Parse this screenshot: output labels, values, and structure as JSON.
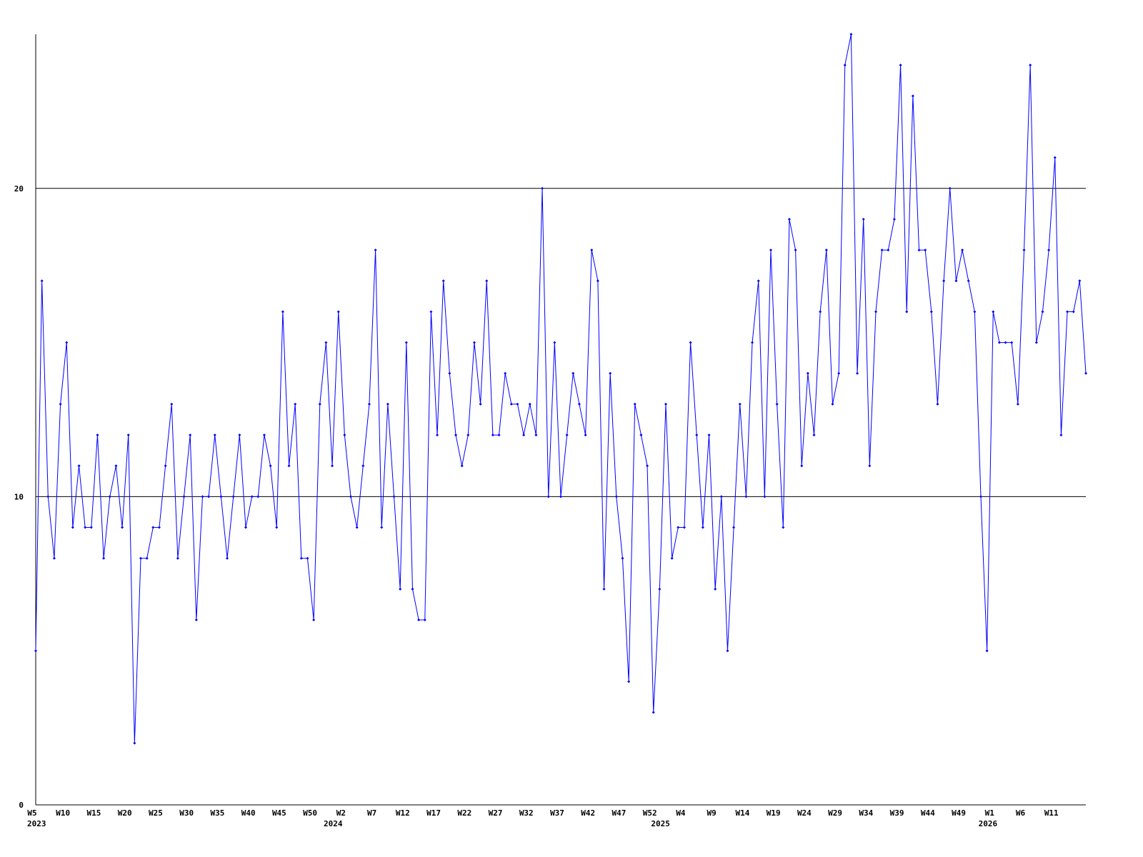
{
  "chart_data": {
    "type": "line",
    "categories": [
      "W5",
      null,
      null,
      null,
      null,
      "W10",
      null,
      null,
      null,
      null,
      "W15",
      null,
      null,
      null,
      null,
      "W20",
      null,
      null,
      null,
      null,
      "W25",
      null,
      null,
      null,
      null,
      "W30",
      null,
      null,
      null,
      null,
      "W35",
      null,
      null,
      null,
      null,
      "W40",
      null,
      null,
      null,
      null,
      "W45",
      null,
      null,
      null,
      null,
      "W50",
      null,
      null,
      null,
      null,
      "W2",
      null,
      null,
      null,
      null,
      "W7",
      null,
      null,
      null,
      null,
      "W12",
      null,
      null,
      null,
      null,
      "W17",
      null,
      null,
      null,
      null,
      "W22",
      null,
      null,
      null,
      null,
      "W27",
      null,
      null,
      null,
      null,
      "W32",
      null,
      null,
      null,
      null,
      "W37",
      null,
      null,
      null,
      null,
      "W42",
      null,
      null,
      null,
      null,
      "W47",
      null,
      null,
      null,
      null,
      "W52",
      null,
      null,
      null,
      null,
      "W4",
      null,
      null,
      null,
      null,
      "W9",
      null,
      null,
      null,
      null,
      "W14",
      null,
      null,
      null,
      null,
      "W19",
      null,
      null,
      null,
      null,
      "W24",
      null,
      null,
      null,
      null,
      "W29",
      null,
      null,
      null,
      null,
      "W34",
      null,
      null,
      null,
      null,
      "W39",
      null,
      null,
      null,
      null,
      "W44",
      null,
      null,
      null,
      null,
      "W49",
      null,
      null,
      null,
      null,
      "W1",
      null,
      null,
      null,
      null,
      "W6",
      null,
      null,
      null,
      null,
      "W11",
      null,
      null,
      null,
      null,
      null
    ],
    "x_year_labels": [
      "2023",
      null,
      null,
      null,
      null,
      null,
      null,
      null,
      null,
      null,
      null,
      null,
      null,
      null,
      null,
      null,
      null,
      null,
      null,
      null,
      null,
      null,
      null,
      null,
      null,
      null,
      null,
      null,
      null,
      null,
      null,
      null,
      null,
      null,
      null,
      null,
      null,
      null,
      null,
      null,
      null,
      null,
      null,
      null,
      null,
      null,
      null,
      null,
      "2024",
      null,
      null,
      null,
      null,
      null,
      null,
      null,
      null,
      null,
      null,
      null,
      null,
      null,
      null,
      null,
      null,
      null,
      null,
      null,
      null,
      null,
      null,
      null,
      null,
      null,
      null,
      null,
      null,
      null,
      null,
      null,
      null,
      null,
      null,
      null,
      null,
      null,
      null,
      null,
      null,
      null,
      null,
      null,
      null,
      null,
      null,
      null,
      null,
      null,
      null,
      null,
      null,
      "2025",
      null,
      null,
      null,
      null,
      null,
      null,
      null,
      null,
      null,
      null,
      null,
      null,
      null,
      null,
      null,
      null,
      null,
      null,
      null,
      null,
      null,
      null,
      null,
      null,
      null,
      null,
      null,
      null,
      null,
      null,
      null,
      null,
      null,
      null,
      null,
      null,
      null,
      null,
      null,
      null,
      null,
      null,
      null,
      null,
      null,
      null,
      null,
      null,
      null,
      null,
      null,
      null,
      "2026",
      null,
      null,
      null,
      null,
      null,
      null,
      null,
      null,
      null,
      null,
      null,
      null,
      null,
      null,
      null,
      null
    ],
    "values": [
      5,
      17,
      10,
      8,
      13,
      15,
      9,
      11,
      9,
      9,
      12,
      8,
      10,
      11,
      9,
      12,
      2,
      8,
      8,
      9,
      9,
      11,
      13,
      8,
      10,
      12,
      6,
      10,
      10,
      12,
      10,
      8,
      10,
      12,
      9,
      10,
      10,
      12,
      11,
      9,
      16,
      11,
      13,
      8,
      8,
      6,
      13,
      15,
      11,
      16,
      12,
      10,
      9,
      11,
      13,
      18,
      9,
      13,
      10,
      7,
      15,
      7,
      6,
      6,
      16,
      12,
      17,
      14,
      12,
      11,
      12,
      15,
      13,
      17,
      12,
      12,
      14,
      13,
      13,
      12,
      13,
      12,
      20,
      10,
      15,
      10,
      12,
      14,
      13,
      12,
      18,
      17,
      7,
      14,
      10,
      8,
      4,
      13,
      12,
      11,
      3,
      7,
      13,
      8,
      9,
      9,
      15,
      12,
      9,
      12,
      7,
      10,
      5,
      9,
      13,
      10,
      15,
      17,
      10,
      18,
      13,
      9,
      19,
      18,
      11,
      14,
      12,
      16,
      18,
      13,
      14,
      24,
      25,
      14,
      19,
      11,
      16,
      18,
      18,
      19,
      24,
      16,
      23,
      18,
      18,
      16,
      13,
      17,
      20,
      17,
      18,
      17,
      16,
      10,
      5,
      16,
      15,
      15,
      15,
      13,
      18,
      24,
      15,
      16,
      18,
      21,
      12,
      16,
      16,
      17,
      14
    ],
    "color": "#0000ff",
    "ylim": [
      0,
      25
    ],
    "yticks": [
      0,
      10,
      20
    ],
    "grid": true
  }
}
